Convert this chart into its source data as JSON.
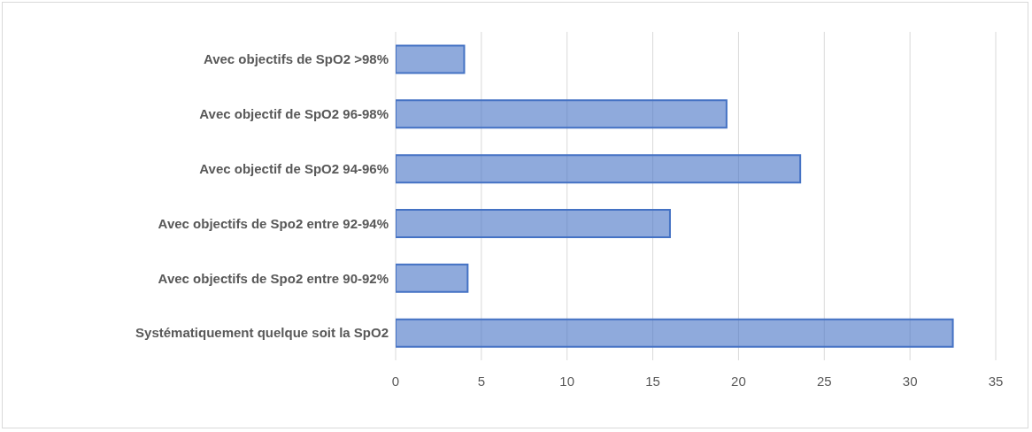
{
  "chart_data": {
    "type": "bar",
    "orientation": "horizontal",
    "categories": [
      "Avec objectifs de SpO2 >98%",
      "Avec objectif de SpO2 96-98%",
      "Avec objectif de SpO2 94-96%",
      "Avec objectifs de Spo2 entre 92-94%",
      "Avec objectifs de Spo2 entre 90-92%",
      "Systématiquement quelque soit la SpO2"
    ],
    "values": [
      4,
      19.3,
      23.6,
      16,
      4.2,
      32.5
    ],
    "color": "#4472c4",
    "xlim": [
      0,
      35
    ],
    "xticks": [
      0,
      5,
      10,
      15,
      20,
      25,
      30,
      35
    ],
    "grid": "x"
  }
}
